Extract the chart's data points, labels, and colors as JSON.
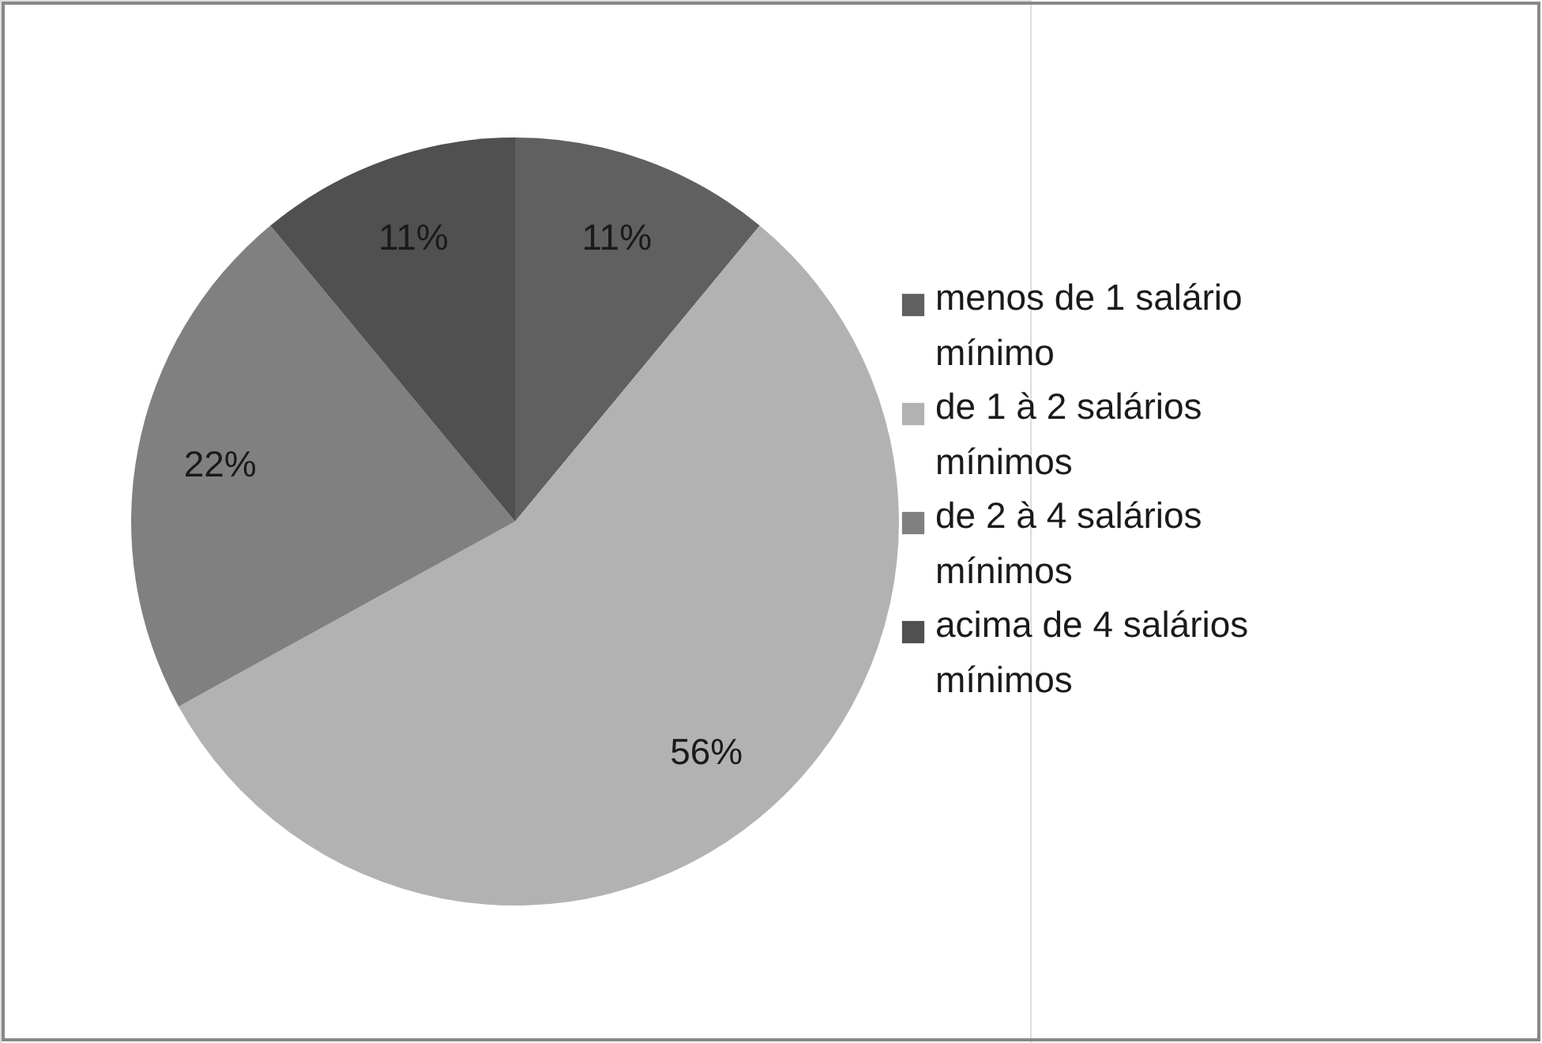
{
  "chart_data": {
    "type": "pie",
    "categories": [
      "menos de 1 salário mínimo",
      "de 1 à 2 salários mínimos",
      "de 2 à 4 salários mínimos",
      "acima de 4 salários mínimos"
    ],
    "values": [
      11,
      56,
      22,
      11
    ],
    "value_labels": [
      "11%",
      "56%",
      "22%",
      "11%"
    ],
    "colors": [
      "#606060",
      "#b2b2b2",
      "#808080",
      "#505050"
    ],
    "legend": "right"
  }
}
